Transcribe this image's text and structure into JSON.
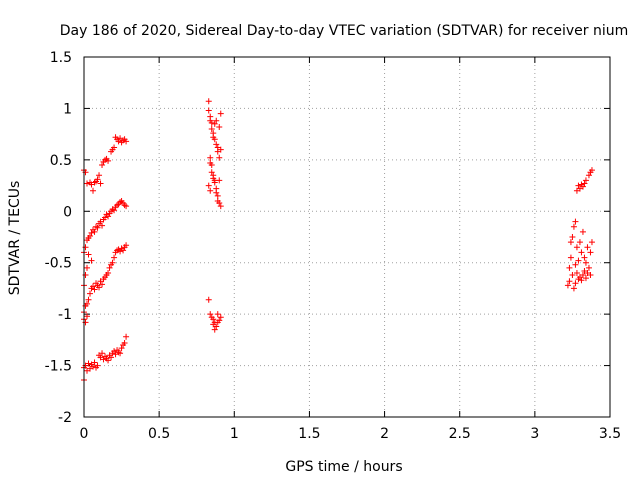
{
  "chart_data": {
    "type": "scatter",
    "title": "Day 186 of 2020, Sidereal Day-to-day VTEC variation (SDTVAR) for receiver nium",
    "xlabel": "GPS time / hours",
    "ylabel": "SDTVAR / TECUs",
    "xlim": [
      0,
      3.5
    ],
    "ylim": [
      -2,
      1.5
    ],
    "xticks": [
      0,
      0.5,
      1,
      1.5,
      2,
      2.5,
      3,
      3.5
    ],
    "xtick_labels": [
      "0",
      "0.5",
      "1",
      "1.5",
      "2",
      "2.5",
      "3",
      "3.5"
    ],
    "yticks": [
      -2,
      -1.5,
      -1,
      -0.5,
      0,
      0.5,
      1,
      1.5
    ],
    "ytick_labels": [
      "-2",
      "-1.5",
      "-1",
      "-0.5",
      "0",
      "0.5",
      "1",
      "1.5"
    ],
    "grid": true,
    "marker": "+",
    "color": "#ff0000",
    "series": [
      {
        "name": "SDTVAR",
        "points": [
          [
            0.0,
            0.4
          ],
          [
            0.01,
            0.38
          ],
          [
            0.02,
            0.27
          ],
          [
            0.04,
            0.28
          ],
          [
            0.05,
            0.26
          ],
          [
            0.06,
            0.2
          ],
          [
            0.07,
            0.28
          ],
          [
            0.08,
            0.29
          ],
          [
            0.09,
            0.31
          ],
          [
            0.1,
            0.35
          ],
          [
            0.11,
            0.27
          ],
          [
            0.12,
            0.45
          ],
          [
            0.13,
            0.48
          ],
          [
            0.14,
            0.5
          ],
          [
            0.15,
            0.51
          ],
          [
            0.16,
            0.49
          ],
          [
            0.18,
            0.58
          ],
          [
            0.19,
            0.6
          ],
          [
            0.2,
            0.62
          ],
          [
            0.21,
            0.72
          ],
          [
            0.22,
            0.7
          ],
          [
            0.23,
            0.68
          ],
          [
            0.24,
            0.71
          ],
          [
            0.25,
            0.67
          ],
          [
            0.26,
            0.69
          ],
          [
            0.27,
            0.7
          ],
          [
            0.28,
            0.68
          ],
          [
            0.0,
            -0.4
          ],
          [
            0.01,
            -0.35
          ],
          [
            0.02,
            -0.28
          ],
          [
            0.03,
            -0.26
          ],
          [
            0.04,
            -0.24
          ],
          [
            0.05,
            -0.21
          ],
          [
            0.06,
            -0.18
          ],
          [
            0.07,
            -0.2
          ],
          [
            0.08,
            -0.15
          ],
          [
            0.09,
            -0.16
          ],
          [
            0.1,
            -0.12
          ],
          [
            0.11,
            -0.1
          ],
          [
            0.12,
            -0.14
          ],
          [
            0.13,
            -0.08
          ],
          [
            0.14,
            -0.06
          ],
          [
            0.15,
            -0.03
          ],
          [
            0.16,
            -0.05
          ],
          [
            0.17,
            -0.02
          ],
          [
            0.18,
            0.0
          ],
          [
            0.19,
            0.02
          ],
          [
            0.2,
            0.01
          ],
          [
            0.21,
            0.04
          ],
          [
            0.22,
            0.06
          ],
          [
            0.23,
            0.07
          ],
          [
            0.24,
            0.09
          ],
          [
            0.25,
            0.1
          ],
          [
            0.26,
            0.08
          ],
          [
            0.27,
            0.06
          ],
          [
            0.28,
            0.05
          ],
          [
            0.0,
            -0.72
          ],
          [
            0.01,
            -0.62
          ],
          [
            0.02,
            -0.55
          ],
          [
            0.03,
            -0.42
          ],
          [
            0.05,
            -0.48
          ],
          [
            0.0,
            -0.98
          ],
          [
            0.01,
            -0.92
          ],
          [
            0.02,
            -0.9
          ],
          [
            0.03,
            -0.86
          ],
          [
            0.04,
            -0.8
          ],
          [
            0.05,
            -0.75
          ],
          [
            0.06,
            -0.73
          ],
          [
            0.07,
            -0.76
          ],
          [
            0.08,
            -0.7
          ],
          [
            0.09,
            -0.72
          ],
          [
            0.1,
            -0.74
          ],
          [
            0.11,
            -0.68
          ],
          [
            0.12,
            -0.71
          ],
          [
            0.13,
            -0.66
          ],
          [
            0.14,
            -0.64
          ],
          [
            0.15,
            -0.62
          ],
          [
            0.16,
            -0.6
          ],
          [
            0.17,
            -0.55
          ],
          [
            0.18,
            -0.52
          ],
          [
            0.19,
            -0.5
          ],
          [
            0.2,
            -0.45
          ],
          [
            0.21,
            -0.4
          ],
          [
            0.22,
            -0.38
          ],
          [
            0.23,
            -0.37
          ],
          [
            0.24,
            -0.39
          ],
          [
            0.25,
            -0.36
          ],
          [
            0.26,
            -0.38
          ],
          [
            0.27,
            -0.35
          ],
          [
            0.28,
            -0.33
          ],
          [
            0.0,
            -1.05
          ],
          [
            0.01,
            -1.08
          ],
          [
            0.02,
            -1.02
          ],
          [
            0.0,
            -1.52
          ],
          [
            0.01,
            -1.5
          ],
          [
            0.02,
            -1.55
          ],
          [
            0.03,
            -1.48
          ],
          [
            0.04,
            -1.53
          ],
          [
            0.05,
            -1.49
          ],
          [
            0.06,
            -1.51
          ],
          [
            0.07,
            -1.47
          ],
          [
            0.08,
            -1.52
          ],
          [
            0.09,
            -1.5
          ],
          [
            0.1,
            -1.4
          ],
          [
            0.11,
            -1.42
          ],
          [
            0.12,
            -1.38
          ],
          [
            0.13,
            -1.44
          ],
          [
            0.14,
            -1.41
          ],
          [
            0.15,
            -1.43
          ],
          [
            0.16,
            -1.45
          ],
          [
            0.17,
            -1.4
          ],
          [
            0.18,
            -1.42
          ],
          [
            0.19,
            -1.38
          ],
          [
            0.2,
            -1.36
          ],
          [
            0.21,
            -1.39
          ],
          [
            0.22,
            -1.35
          ],
          [
            0.23,
            -1.37
          ],
          [
            0.24,
            -1.38
          ],
          [
            0.25,
            -1.33
          ],
          [
            0.26,
            -1.3
          ],
          [
            0.27,
            -1.28
          ],
          [
            0.28,
            -1.22
          ],
          [
            0.0,
            -1.64
          ],
          [
            0.83,
            1.07
          ],
          [
            0.83,
            0.98
          ],
          [
            0.84,
            0.92
          ],
          [
            0.84,
            0.88
          ],
          [
            0.85,
            0.86
          ],
          [
            0.85,
            0.8
          ],
          [
            0.86,
            0.76
          ],
          [
            0.86,
            0.72
          ],
          [
            0.87,
            0.85
          ],
          [
            0.87,
            0.7
          ],
          [
            0.88,
            0.88
          ],
          [
            0.88,
            0.65
          ],
          [
            0.89,
            0.62
          ],
          [
            0.89,
            0.58
          ],
          [
            0.9,
            0.82
          ],
          [
            0.9,
            0.52
          ],
          [
            0.91,
            0.95
          ],
          [
            0.91,
            0.6
          ],
          [
            0.84,
            0.52
          ],
          [
            0.84,
            0.47
          ],
          [
            0.85,
            0.45
          ],
          [
            0.85,
            0.38
          ],
          [
            0.86,
            0.35
          ],
          [
            0.86,
            0.32
          ],
          [
            0.87,
            0.3
          ],
          [
            0.87,
            0.28
          ],
          [
            0.88,
            0.22
          ],
          [
            0.88,
            0.18
          ],
          [
            0.89,
            0.15
          ],
          [
            0.89,
            0.1
          ],
          [
            0.9,
            0.08
          ],
          [
            0.9,
            0.3
          ],
          [
            0.91,
            0.05
          ],
          [
            0.83,
            0.25
          ],
          [
            0.84,
            0.2
          ],
          [
            0.83,
            -0.86
          ],
          [
            0.84,
            -1.0
          ],
          [
            0.85,
            -1.03
          ],
          [
            0.86,
            -1.05
          ],
          [
            0.86,
            -1.1
          ],
          [
            0.87,
            -1.08
          ],
          [
            0.87,
            -1.15
          ],
          [
            0.88,
            -1.12
          ],
          [
            0.89,
            -1.08
          ],
          [
            0.89,
            -1.0
          ],
          [
            0.9,
            -1.06
          ],
          [
            0.91,
            -1.03
          ],
          [
            3.22,
            -0.72
          ],
          [
            3.23,
            -0.68
          ],
          [
            3.23,
            -0.55
          ],
          [
            3.24,
            -0.45
          ],
          [
            3.24,
            -0.3
          ],
          [
            3.25,
            -0.62
          ],
          [
            3.25,
            -0.25
          ],
          [
            3.26,
            -0.75
          ],
          [
            3.26,
            -0.15
          ],
          [
            3.27,
            -0.7
          ],
          [
            3.27,
            -0.52
          ],
          [
            3.27,
            -0.1
          ],
          [
            3.28,
            -0.6
          ],
          [
            3.28,
            -0.35
          ],
          [
            3.28,
            0.2
          ],
          [
            3.29,
            -0.66
          ],
          [
            3.29,
            -0.48
          ],
          [
            3.29,
            0.25
          ],
          [
            3.3,
            -0.64
          ],
          [
            3.3,
            -0.3
          ],
          [
            3.3,
            0.22
          ],
          [
            3.31,
            -0.67
          ],
          [
            3.31,
            -0.4
          ],
          [
            3.31,
            0.26
          ],
          [
            3.32,
            -0.62
          ],
          [
            3.32,
            -0.2
          ],
          [
            3.32,
            0.24
          ],
          [
            3.33,
            -0.58
          ],
          [
            3.33,
            -0.45
          ],
          [
            3.33,
            0.27
          ],
          [
            3.34,
            -0.65
          ],
          [
            3.34,
            -0.5
          ],
          [
            3.34,
            0.3
          ],
          [
            3.35,
            -0.6
          ],
          [
            3.35,
            -0.35
          ],
          [
            3.36,
            -0.55
          ],
          [
            3.36,
            0.35
          ],
          [
            3.37,
            -0.4
          ],
          [
            3.37,
            0.38
          ],
          [
            3.38,
            -0.3
          ],
          [
            3.38,
            0.4
          ],
          [
            3.37,
            -0.62
          ]
        ]
      }
    ]
  }
}
